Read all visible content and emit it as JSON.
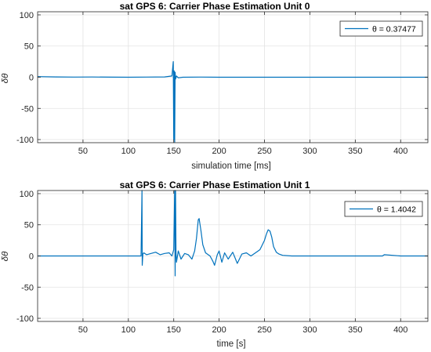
{
  "figure": {
    "background": "#ffffff",
    "line_color": "#0072bd",
    "grid_color": "#e3e3e3",
    "axis_color": "#262626"
  },
  "chart_data": [
    {
      "type": "line",
      "title": "sat GPS 6: Carrier Phase Estimation Unit 0",
      "xlabel": "simulation time [ms]",
      "ylabel": "δθ",
      "xlim": [
        0,
        430
      ],
      "ylim": [
        -105,
        105
      ],
      "xticks": [
        50,
        100,
        150,
        200,
        250,
        300,
        350,
        400
      ],
      "yticks": [
        -100,
        -50,
        0,
        50,
        100
      ],
      "grid": true,
      "legend": {
        "position": "top-right",
        "label": "θ = 0.37477"
      },
      "series": [
        {
          "x": [
            0,
            20,
            40,
            60,
            80,
            100,
            120,
            140,
            148,
            149.5,
            150,
            150.5,
            151,
            151.5,
            152,
            153,
            155,
            160,
            180,
            200,
            250,
            300,
            350,
            400,
            430
          ],
          "y": [
            1,
            0.5,
            0.2,
            0.4,
            0.1,
            0,
            0.3,
            0.5,
            2,
            25,
            -100,
            10,
            -104,
            8,
            -3,
            2,
            -1,
            0,
            0.3,
            0,
            0,
            0,
            0,
            0,
            0
          ]
        }
      ]
    },
    {
      "type": "line",
      "title": "sat GPS 6: Carrier Phase Estimation Unit 1",
      "xlabel": "time [s]",
      "ylabel": "δθ",
      "xlim": [
        0,
        430
      ],
      "ylim": [
        -105,
        105
      ],
      "xticks": [
        50,
        100,
        150,
        200,
        250,
        300,
        350,
        400
      ],
      "yticks": [
        -100,
        -50,
        0,
        50,
        100
      ],
      "grid": true,
      "legend": {
        "position": "top-right",
        "label": "θ = 1.4042"
      },
      "series": [
        {
          "x": [
            0,
            50,
            100,
            114,
            115,
            115.3,
            116,
            117,
            120,
            125,
            130,
            135,
            140,
            145,
            148,
            150,
            151,
            151.5,
            152,
            152.5,
            153,
            155,
            158,
            162,
            166,
            170,
            173,
            175,
            177,
            178,
            180,
            182,
            185,
            190,
            193,
            195,
            198,
            200,
            203,
            206,
            210,
            215,
            220,
            225,
            230,
            235,
            240,
            245,
            250,
            252,
            254,
            256,
            258,
            260,
            263,
            266,
            270,
            280,
            300,
            350,
            380,
            382,
            400,
            430
          ],
          "y": [
            0,
            0,
            0,
            0,
            105,
            -15,
            3,
            5,
            2,
            4,
            6,
            2,
            4,
            5,
            0,
            10,
            105,
            -32,
            105,
            5,
            -10,
            8,
            -5,
            4,
            2,
            -5,
            8,
            28,
            58,
            60,
            40,
            18,
            5,
            0,
            -8,
            -15,
            2,
            8,
            -10,
            5,
            -5,
            6,
            -12,
            3,
            5,
            0,
            5,
            10,
            25,
            35,
            42,
            40,
            30,
            15,
            6,
            3,
            1,
            0,
            0,
            0,
            0,
            2,
            0,
            0
          ]
        }
      ]
    }
  ]
}
